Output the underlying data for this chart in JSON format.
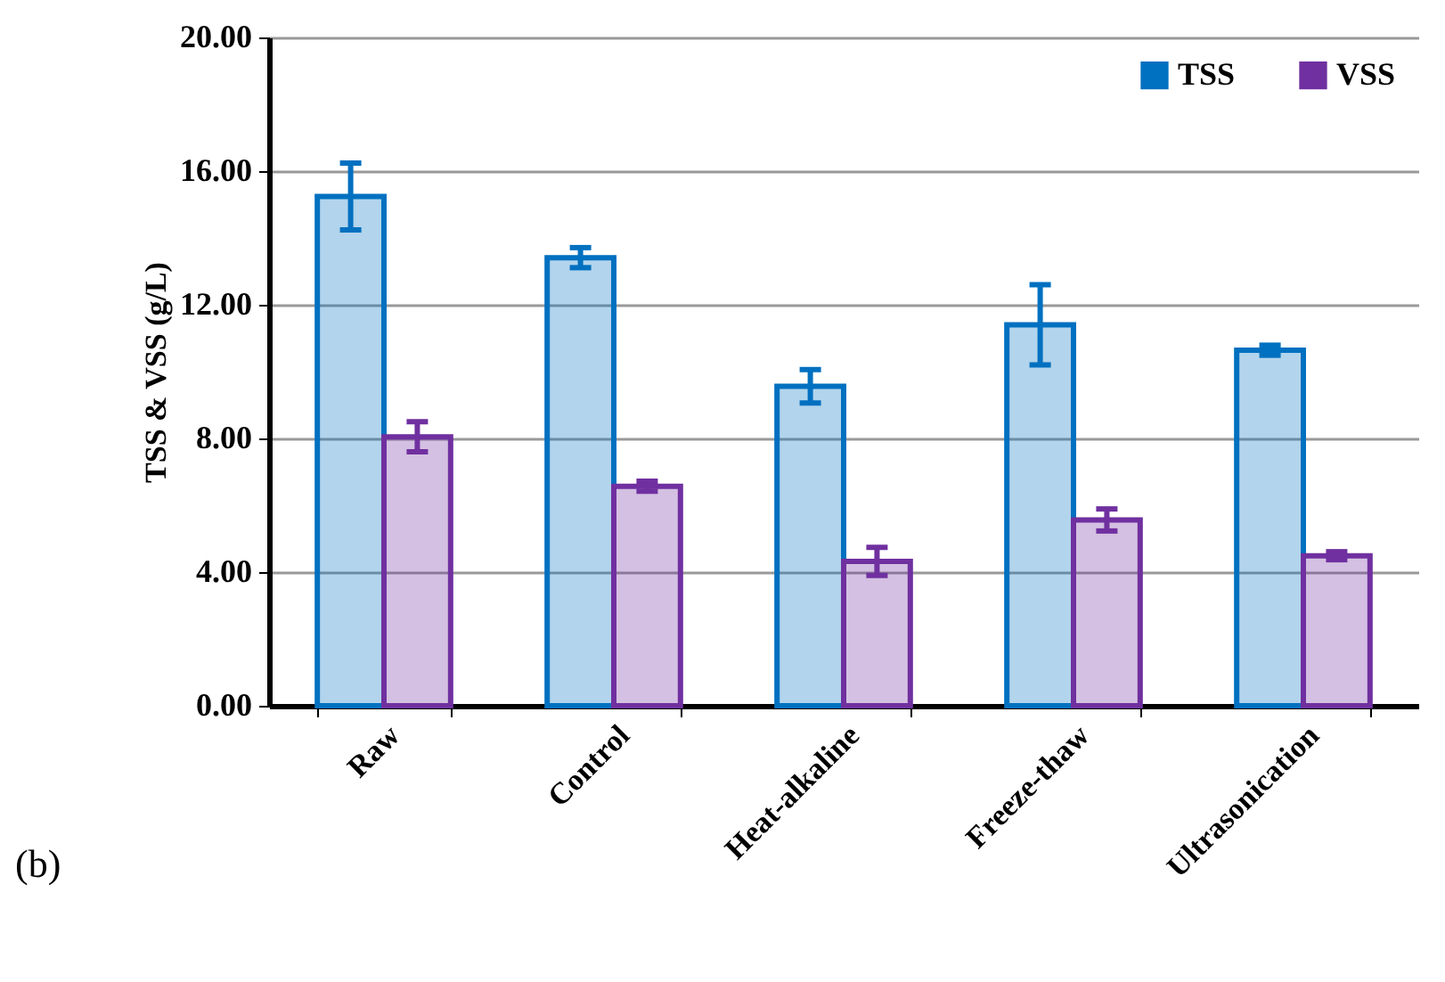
{
  "chart_data": {
    "type": "bar",
    "ylabel": "TSS & VSS (g/L)",
    "categories": [
      "Raw",
      "Control",
      "Heat-alkaline",
      "Freeze-thaw",
      "Ultrasonication"
    ],
    "series": [
      {
        "name": "TSS",
        "color": "#0070c0",
        "values": [
          15.24,
          13.41,
          9.56,
          11.4,
          10.64
        ],
        "errors": [
          1.0,
          0.3,
          0.5,
          1.2,
          0.15
        ]
      },
      {
        "name": "VSS",
        "color": "#7030a0",
        "values": [
          8.05,
          6.57,
          4.32,
          5.56,
          4.49
        ],
        "errors": [
          0.45,
          0.15,
          0.42,
          0.33,
          0.12
        ]
      }
    ],
    "ylim": [
      0,
      20
    ],
    "yticks": [
      {
        "value": 0,
        "label": "0.00"
      },
      {
        "value": 4,
        "label": "4.00"
      },
      {
        "value": 8,
        "label": "8.00"
      },
      {
        "value": 12,
        "label": "12.00"
      },
      {
        "value": 16,
        "label": "16.00"
      },
      {
        "value": 20,
        "label": "20.00"
      }
    ],
    "grid": "y",
    "legend": "top right",
    "annotations": [
      "(b)"
    ]
  }
}
